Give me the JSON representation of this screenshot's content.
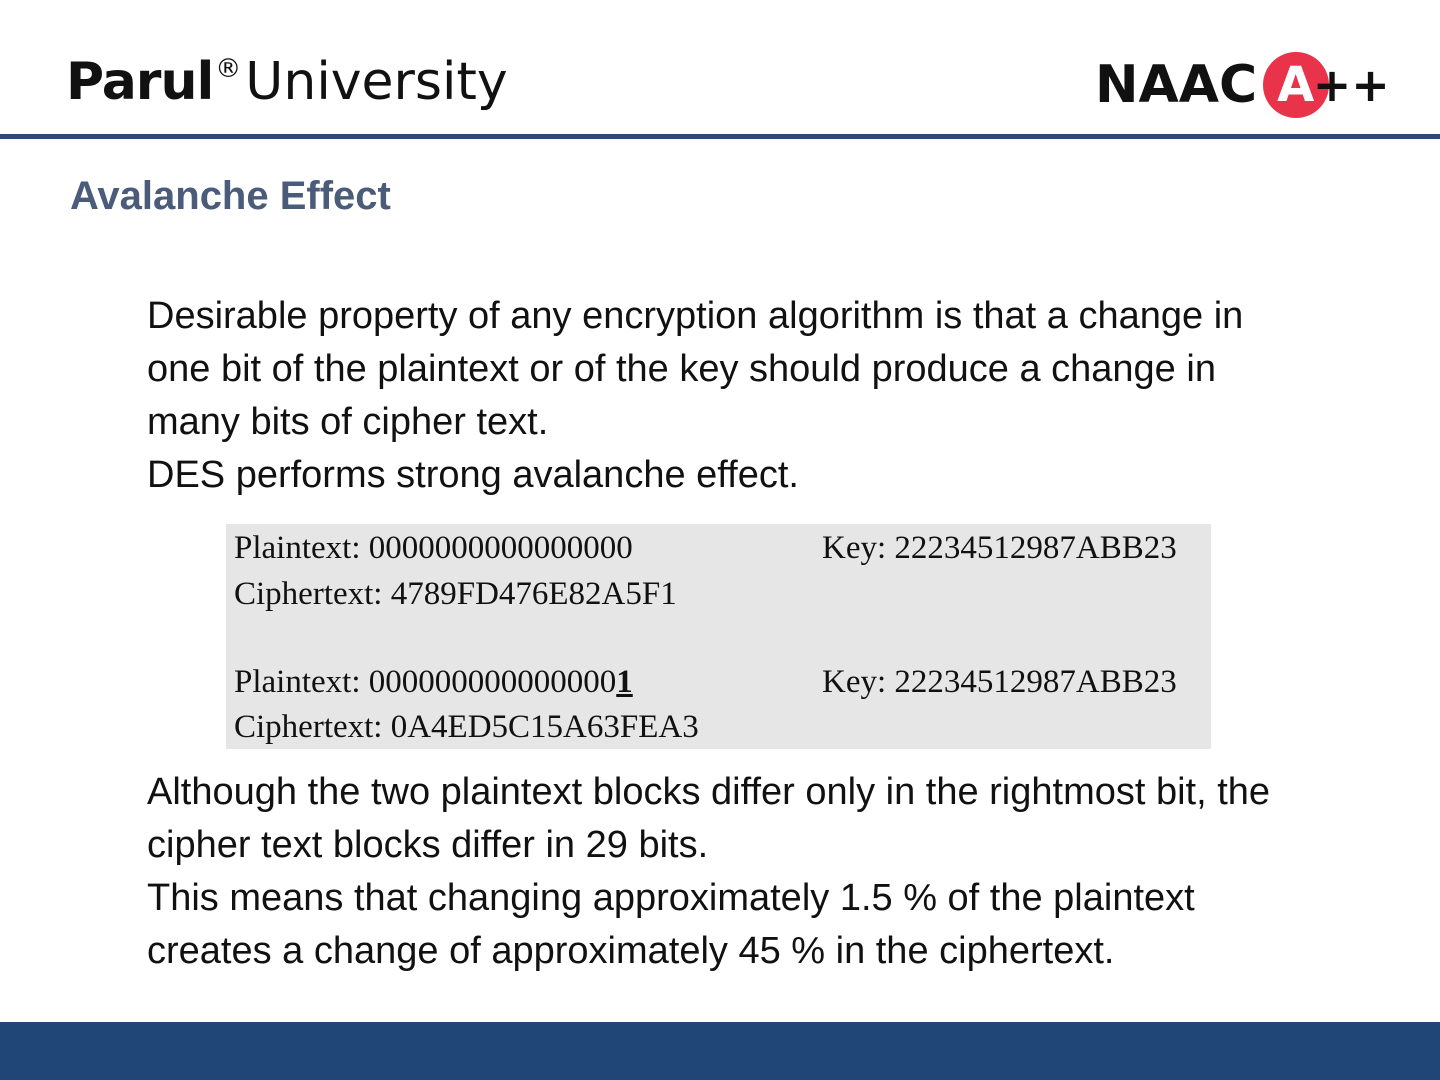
{
  "header": {
    "logo_left": {
      "brand": "Parul",
      "reg": "®",
      "rest": "University"
    },
    "logo_right": {
      "text": "NAAC",
      "grade": "A",
      "plus": "++"
    },
    "colors": {
      "rule": "#2a4a7a",
      "grade_circle": "#e8334a"
    }
  },
  "slide": {
    "title": "Avalanche Effect",
    "intro": [
      "Desirable property of any encryption algorithm is that a change in",
      "one bit of the plaintext or of the key should produce a change in",
      "many bits of cipher text.",
      "DES performs strong avalanche effect."
    ],
    "example": {
      "row1_plain_label": "Plaintext: 000000000000000",
      "row1_plain_tail": "0",
      "row1_key": "Key: 22234512987ABB23",
      "row1_cipher": "Ciphertext: 4789FD476E82A5F1",
      "row2_plain_label": "Plaintext: 000000000000000",
      "row2_plain_tail": "1",
      "row2_key": "Key: 22234512987ABB23",
      "row2_cipher": "Ciphertext: 0A4ED5C15A63FEA3"
    },
    "conclusion": [
      "Although the two plaintext blocks differ only in the rightmost bit, the",
      "cipher text blocks differ in 29 bits.",
      "This means that changing approximately 1.5 % of the plaintext",
      "creates a change of approximately 45 % in the ciphertext."
    ]
  },
  "footer": {
    "color": "#1f4677"
  }
}
